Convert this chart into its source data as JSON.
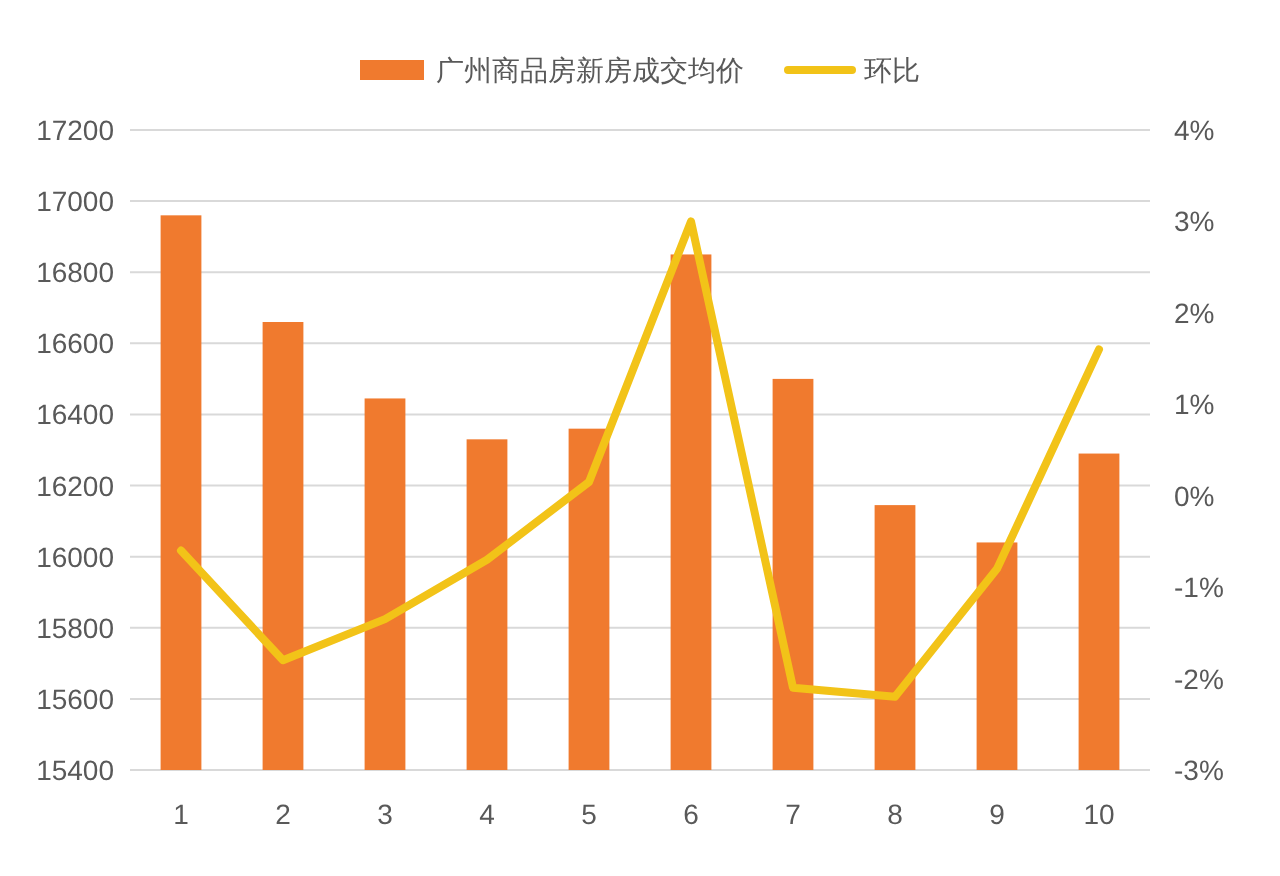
{
  "chart_data": {
    "type": "bar",
    "categories": [
      "1",
      "2",
      "3",
      "4",
      "5",
      "6",
      "7",
      "8",
      "9",
      "10"
    ],
    "series": [
      {
        "name": "广州商品房新房成交均价",
        "color": "#f07a2e",
        "values": [
          16960,
          16660,
          16445,
          16330,
          16360,
          16850,
          16500,
          16145,
          16040,
          16290
        ]
      },
      {
        "name": "环比",
        "type": "line",
        "axis": "y2",
        "color": "#f2c318",
        "values": [
          -0.6,
          -1.8,
          -1.35,
          -0.7,
          0.15,
          3.0,
          -2.1,
          -2.2,
          -0.8,
          1.6
        ]
      }
    ],
    "ylim": [
      15400,
      17200
    ],
    "yticks": [
      15400,
      15600,
      15800,
      16000,
      16200,
      16400,
      16600,
      16800,
      17000,
      17200
    ],
    "y2lim": [
      -3,
      4
    ],
    "y2ticks": [
      {
        "value": -3,
        "label": "-3%"
      },
      {
        "value": -2,
        "label": "-2%"
      },
      {
        "value": -1,
        "label": "-1%"
      },
      {
        "value": 0,
        "label": "0%"
      },
      {
        "value": 1,
        "label": "1%"
      },
      {
        "value": 2,
        "label": "2%"
      },
      {
        "value": 3,
        "label": "3%"
      },
      {
        "value": 4,
        "label": "4%"
      }
    ],
    "grid": "y",
    "legend": "top",
    "marker": "none"
  }
}
